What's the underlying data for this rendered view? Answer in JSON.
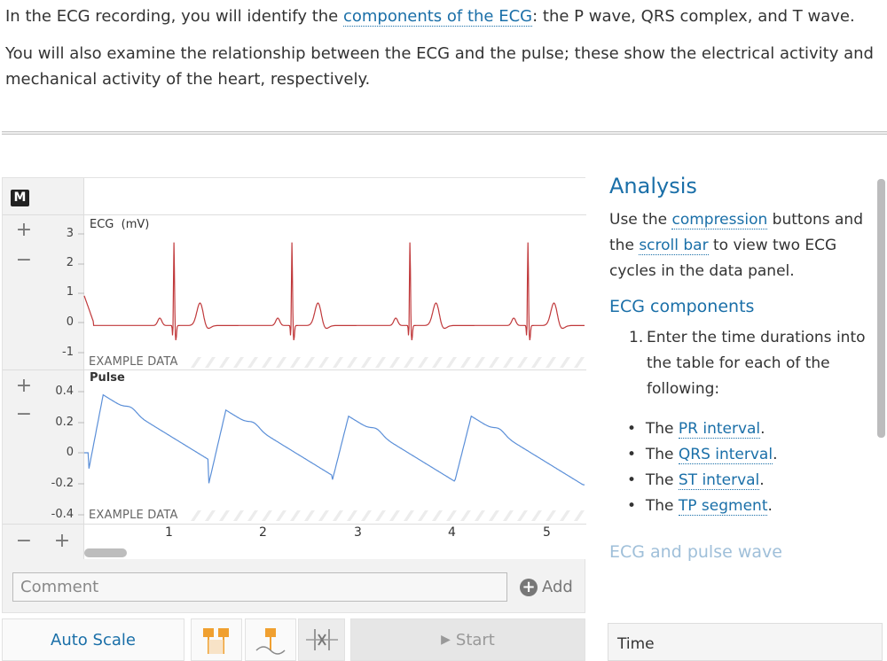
{
  "intro": {
    "p1_pre": "In the ECG recording, you will identify the ",
    "p1_link": "components of the ECG",
    "p1_post": ": the P wave, QRS complex, and T wave.",
    "p2": "You will also examine the relationship between the ECG and the pulse; these show the electrical activity and mechanical activity of the heart, respectively."
  },
  "recorder": {
    "mode_badge": "M",
    "ecg": {
      "name": "ECG",
      "unit": "(mV)",
      "ticks": [
        "3",
        "2",
        "1",
        "0",
        "-1"
      ],
      "watermark": "EXAMPLE DATA",
      "color": "#c0393b"
    },
    "pulse": {
      "name": "Pulse",
      "ticks": [
        "0.4",
        "0.2",
        "0",
        "-0.2",
        "-0.4"
      ],
      "watermark": "EXAMPLE DATA",
      "color": "#5b8fd8"
    },
    "time_ticks": [
      "1",
      "2",
      "3",
      "4",
      "5"
    ],
    "comment_placeholder": "Comment",
    "add_label": "Add",
    "autoscale_label": "Auto Scale",
    "start_label": "Start"
  },
  "chart_data": [
    {
      "type": "line",
      "title": "ECG",
      "ylabel": "(mV)",
      "ylim": [
        -1.2,
        3.4
      ],
      "series": [
        {
          "name": "ECG",
          "x": [
            0.95,
            2.2,
            3.45,
            4.7
          ],
          "values": [
            2.7,
            2.7,
            2.7,
            2.7
          ]
        }
      ]
    },
    {
      "type": "line",
      "title": "Pulse",
      "ylim": [
        -0.42,
        0.46
      ],
      "series": [
        {
          "name": "Pulse",
          "x": [
            0.2,
            1.5,
            2.8,
            4.1
          ],
          "values": [
            0.38,
            0.28,
            0.24,
            0.24
          ]
        }
      ]
    }
  ],
  "analysis": {
    "heading": "Analysis",
    "para_pre": "Use the ",
    "compression_link": "compression",
    "para_mid": " buttons and the ",
    "scroll_link": "scroll bar",
    "para_post": " to view two ECG cycles in the data panel.",
    "ecg_heading": "ECG components",
    "step1": "Enter the time durations into the table for each of the following:",
    "bullets": [
      {
        "pre": "The ",
        "link": "PR interval",
        "post": "."
      },
      {
        "pre": "The ",
        "link": "QRS interval",
        "post": "."
      },
      {
        "pre": "The ",
        "link": "ST interval",
        "post": "."
      },
      {
        "pre": "The ",
        "link": "TP segment",
        "post": "."
      }
    ],
    "pulse_heading": "ECG and pulse wave",
    "table_header": "Time"
  }
}
